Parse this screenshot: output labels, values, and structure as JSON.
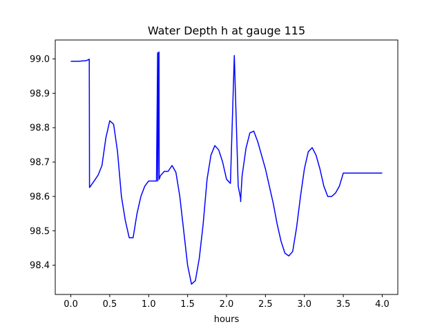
{
  "chart_data": {
    "type": "line",
    "title": "Water Depth h at gauge 115",
    "xlabel": "hours",
    "ylabel": "",
    "xlim": [
      -0.2,
      4.2
    ],
    "ylim": [
      98.315,
      99.055
    ],
    "xticks": [
      {
        "value": 0.0,
        "label": "0.0"
      },
      {
        "value": 0.5,
        "label": "0.5"
      },
      {
        "value": 1.0,
        "label": "1.0"
      },
      {
        "value": 1.5,
        "label": "1.5"
      },
      {
        "value": 2.0,
        "label": "2.0"
      },
      {
        "value": 2.5,
        "label": "2.5"
      },
      {
        "value": 3.0,
        "label": "3.0"
      },
      {
        "value": 3.5,
        "label": "3.5"
      },
      {
        "value": 4.0,
        "label": "4.0"
      }
    ],
    "yticks": [
      {
        "value": 98.4,
        "label": "98.4"
      },
      {
        "value": 98.5,
        "label": "98.5"
      },
      {
        "value": 98.6,
        "label": "98.6"
      },
      {
        "value": 98.7,
        "label": "98.7"
      },
      {
        "value": 98.8,
        "label": "98.8"
      },
      {
        "value": 98.9,
        "label": "98.9"
      },
      {
        "value": 99.0,
        "label": "99.0"
      }
    ],
    "grid": false,
    "series": [
      {
        "color": "#0000ff",
        "x": [
          0.0,
          0.1,
          0.2,
          0.235,
          0.237,
          0.24,
          0.3,
          0.35,
          0.4,
          0.45,
          0.5,
          0.55,
          0.6,
          0.65,
          0.7,
          0.75,
          0.8,
          0.85,
          0.9,
          0.95,
          1.0,
          1.05,
          1.1,
          1.115,
          1.117,
          1.13,
          1.133,
          1.135,
          1.15,
          1.2,
          1.25,
          1.3,
          1.35,
          1.4,
          1.45,
          1.5,
          1.55,
          1.6,
          1.65,
          1.7,
          1.75,
          1.8,
          1.85,
          1.9,
          1.95,
          2.0,
          2.05,
          2.1,
          2.15,
          2.18,
          2.182,
          2.184,
          2.2,
          2.25,
          2.3,
          2.35,
          2.4,
          2.45,
          2.5,
          2.55,
          2.6,
          2.65,
          2.7,
          2.75,
          2.8,
          2.85,
          2.9,
          2.95,
          3.0,
          3.05,
          3.1,
          3.15,
          3.2,
          3.25,
          3.3,
          3.35,
          3.4,
          3.45,
          3.5,
          3.55,
          3.6,
          3.65,
          3.7,
          3.75,
          3.8,
          3.85,
          3.9,
          3.95,
          4.0
        ],
        "y": [
          98.993,
          98.993,
          98.995,
          98.999,
          98.999,
          98.626,
          98.645,
          98.662,
          98.69,
          98.77,
          98.82,
          98.81,
          98.73,
          98.6,
          98.53,
          98.48,
          98.48,
          98.55,
          98.6,
          98.63,
          98.645,
          98.645,
          98.645,
          99.018,
          98.645,
          99.02,
          99.02,
          98.65,
          98.66,
          98.673,
          98.673,
          98.69,
          98.67,
          98.6,
          98.5,
          98.4,
          98.345,
          98.355,
          98.42,
          98.52,
          98.65,
          98.72,
          98.748,
          98.735,
          98.7,
          98.65,
          98.638,
          99.01,
          98.63,
          98.595,
          98.585,
          98.6,
          98.66,
          98.74,
          98.785,
          98.79,
          98.76,
          98.72,
          98.68,
          98.63,
          98.58,
          98.52,
          98.47,
          98.435,
          98.427,
          98.44,
          98.51,
          98.6,
          98.68,
          98.73,
          98.742,
          98.72,
          98.68,
          98.63,
          98.6,
          98.6,
          98.61,
          98.63,
          98.668,
          98.668,
          98.668,
          98.668,
          98.668,
          98.668,
          98.668,
          98.668,
          98.668,
          98.668,
          98.668
        ]
      }
    ]
  }
}
